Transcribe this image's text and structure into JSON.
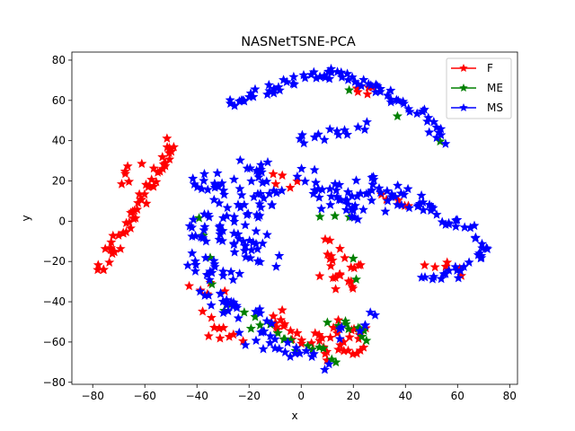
{
  "chart_data": {
    "type": "scatter",
    "title": "NASNetTSNE-PCA",
    "xlabel": "x",
    "ylabel": "y",
    "xlim": [
      -88,
      83
    ],
    "ylim": [
      -81,
      84
    ],
    "xticks": [
      -80,
      -60,
      -40,
      -20,
      0,
      20,
      40,
      60,
      80
    ],
    "yticks": [
      -80,
      -60,
      -40,
      -20,
      0,
      20,
      40,
      60,
      80
    ],
    "legend_position": "top-right",
    "marker": "star",
    "series": [
      {
        "name": "F",
        "color": "#ff0000",
        "clusters": [
          {
            "x0": -49,
            "y0": 39,
            "x1": -77,
            "y1": -24,
            "r": 2.5,
            "n": 55
          },
          {
            "x0": -70,
            "y0": 20,
            "x1": -62,
            "y1": 26,
            "r": 3,
            "n": 6
          },
          {
            "x0": 14,
            "y0": -13,
            "x1": 16,
            "y1": -34,
            "r": 5,
            "n": 18
          },
          {
            "x0": 8,
            "y0": -28,
            "x1": 22,
            "y1": -24,
            "r": 3,
            "n": 6
          },
          {
            "x0": -12,
            "y0": -46,
            "x1": -6,
            "y1": -54,
            "r": 5,
            "n": 10
          },
          {
            "x0": 0,
            "y0": -56,
            "x1": 8,
            "y1": -68,
            "r": 4,
            "n": 10
          },
          {
            "x0": 10,
            "y0": -52,
            "x1": 26,
            "y1": -60,
            "r": 5,
            "n": 16
          },
          {
            "x0": -36,
            "y0": -46,
            "x1": -26,
            "y1": -62,
            "r": 4,
            "n": 10
          },
          {
            "x0": 14,
            "y0": -62,
            "x1": 20,
            "y1": -68,
            "r": 3,
            "n": 6
          },
          {
            "x0": 20,
            "y0": 64,
            "x1": 28,
            "y1": 65,
            "r": 2,
            "n": 5
          },
          {
            "x0": -12,
            "y0": 22,
            "x1": -4,
            "y1": 18,
            "r": 3,
            "n": 5
          },
          {
            "x0": 30,
            "y0": 12,
            "x1": 40,
            "y1": 8,
            "r": 3,
            "n": 5
          },
          {
            "x0": 48,
            "y0": -20,
            "x1": 62,
            "y1": -26,
            "r": 3,
            "n": 6
          },
          {
            "x0": -40,
            "y0": -30,
            "x1": -32,
            "y1": -36,
            "r": 3,
            "n": 5
          }
        ]
      },
      {
        "name": "ME",
        "color": "#008000",
        "clusters": [
          {
            "x0": 12,
            "y0": -48,
            "x1": 26,
            "y1": -58,
            "r": 3,
            "n": 10
          },
          {
            "x0": -16,
            "y0": -48,
            "x1": -4,
            "y1": -62,
            "r": 3,
            "n": 8
          },
          {
            "x0": 0,
            "y0": -62,
            "x1": 12,
            "y1": -68,
            "r": 3,
            "n": 6
          },
          {
            "x0": -32,
            "y0": -34,
            "x1": -22,
            "y1": -52,
            "r": 3,
            "n": 5
          },
          {
            "x0": 19,
            "y0": 66,
            "x1": 19,
            "y1": 66,
            "r": 1,
            "n": 1
          },
          {
            "x0": 37,
            "y0": 52,
            "x1": 37,
            "y1": 52,
            "r": 1,
            "n": 1
          },
          {
            "x0": 54,
            "y0": 40,
            "x1": 54,
            "y1": 40,
            "r": 1,
            "n": 1
          },
          {
            "x0": 20,
            "y0": -18,
            "x1": 22,
            "y1": -28,
            "r": 1,
            "n": 2
          },
          {
            "x0": 8,
            "y0": 2,
            "x1": 18,
            "y1": 2,
            "r": 1,
            "n": 3
          },
          {
            "x0": -40,
            "y0": 2,
            "x1": -36,
            "y1": -20,
            "r": 2,
            "n": 3
          }
        ]
      },
      {
        "name": "MS",
        "color": "#0000ff",
        "clusters": [
          {
            "x0": -28,
            "y0": 58,
            "x1": -12,
            "y1": 66,
            "r": 2,
            "n": 14
          },
          {
            "x0": -12,
            "y0": 66,
            "x1": 10,
            "y1": 74,
            "r": 2.5,
            "n": 18
          },
          {
            "x0": 10,
            "y0": 74,
            "x1": 30,
            "y1": 66,
            "r": 2.5,
            "n": 18
          },
          {
            "x0": 30,
            "y0": 66,
            "x1": 46,
            "y1": 54,
            "r": 2.5,
            "n": 14
          },
          {
            "x0": 46,
            "y0": 54,
            "x1": 54,
            "y1": 40,
            "r": 2.5,
            "n": 12
          },
          {
            "x0": -2,
            "y0": 40,
            "x1": 24,
            "y1": 47,
            "r": 2.5,
            "n": 14
          },
          {
            "x0": -38,
            "y0": 22,
            "x1": -20,
            "y1": 6,
            "r": 6,
            "n": 30
          },
          {
            "x0": -20,
            "y0": 30,
            "x1": -10,
            "y1": 10,
            "r": 5,
            "n": 22
          },
          {
            "x0": -42,
            "y0": 2,
            "x1": -24,
            "y1": -16,
            "r": 6,
            "n": 28
          },
          {
            "x0": -24,
            "y0": 4,
            "x1": -12,
            "y1": -20,
            "r": 6,
            "n": 24
          },
          {
            "x0": -40,
            "y0": -18,
            "x1": -28,
            "y1": -28,
            "r": 5,
            "n": 18
          },
          {
            "x0": -36,
            "y0": -34,
            "x1": -26,
            "y1": -46,
            "r": 4,
            "n": 12
          },
          {
            "x0": -26,
            "y0": -40,
            "x1": -12,
            "y1": -52,
            "r": 4,
            "n": 12
          },
          {
            "x0": -20,
            "y0": -56,
            "x1": -6,
            "y1": -66,
            "r": 4,
            "n": 12
          },
          {
            "x0": -4,
            "y0": -60,
            "x1": 10,
            "y1": -72,
            "r": 3,
            "n": 10
          },
          {
            "x0": 14,
            "y0": -56,
            "x1": 28,
            "y1": -46,
            "r": 3,
            "n": 8
          },
          {
            "x0": 0,
            "y0": 22,
            "x1": 20,
            "y1": 10,
            "r": 5,
            "n": 22
          },
          {
            "x0": 10,
            "y0": 10,
            "x1": 24,
            "y1": 2,
            "r": 4,
            "n": 14
          },
          {
            "x0": 24,
            "y0": 20,
            "x1": 36,
            "y1": 8,
            "r": 5,
            "n": 18
          },
          {
            "x0": 36,
            "y0": 16,
            "x1": 48,
            "y1": 4,
            "r": 4,
            "n": 14
          },
          {
            "x0": 48,
            "y0": 6,
            "x1": 62,
            "y1": -2,
            "r": 3,
            "n": 12
          },
          {
            "x0": 62,
            "y0": -2,
            "x1": 70,
            "y1": -16,
            "r": 3,
            "n": 10
          },
          {
            "x0": 70,
            "y0": -16,
            "x1": 58,
            "y1": -26,
            "r": 3,
            "n": 10
          },
          {
            "x0": 58,
            "y0": -26,
            "x1": 48,
            "y1": -30,
            "r": 2.5,
            "n": 8
          }
        ]
      }
    ]
  }
}
